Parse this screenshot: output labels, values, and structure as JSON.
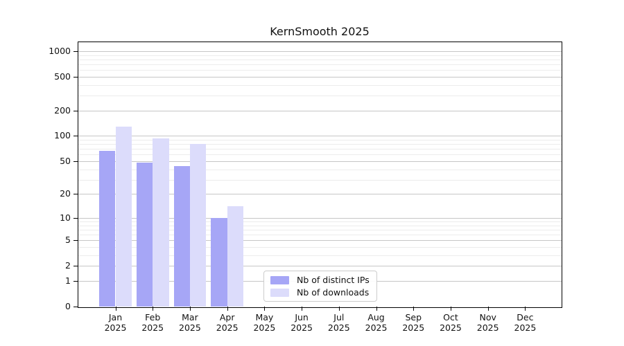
{
  "title": "KernSmooth 2025",
  "chart_data": {
    "type": "bar",
    "title": "KernSmooth 2025",
    "year": "2025",
    "categories": [
      "Jan",
      "Feb",
      "Mar",
      "Apr",
      "May",
      "Jun",
      "Jul",
      "Aug",
      "Sep",
      "Oct",
      "Nov",
      "Dec"
    ],
    "series": [
      {
        "name": "Nb of distinct IPs",
        "color": "#a6a6f6",
        "values": [
          66,
          48,
          44,
          10,
          0,
          0,
          0,
          0,
          0,
          0,
          0,
          0
        ]
      },
      {
        "name": "Nb of downloads",
        "color": "#dcdcfb",
        "values": [
          130,
          94,
          80,
          14,
          0,
          0,
          0,
          0,
          0,
          0,
          0,
          0
        ]
      }
    ],
    "yscale": "log1p",
    "ylim": [
      0,
      1275
    ],
    "yticks": [
      0,
      1,
      2,
      5,
      10,
      20,
      50,
      100,
      200,
      500,
      1000
    ],
    "minor_yticks": [
      3,
      4,
      6,
      7,
      8,
      9,
      30,
      40,
      60,
      70,
      80,
      90,
      300,
      400,
      600,
      700,
      800,
      900
    ],
    "grid": "both",
    "legend_position": "lower center"
  }
}
